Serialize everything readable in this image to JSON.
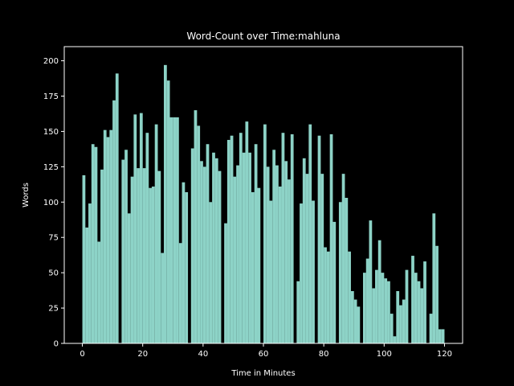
{
  "chart_data": {
    "type": "bar",
    "title": "Word-Count over Time:mahluna",
    "xlabel": "Time in Minutes",
    "ylabel": "Words",
    "xlim": [
      -6,
      126
    ],
    "ylim": [
      0,
      210
    ],
    "xticks": [
      0,
      20,
      40,
      60,
      80,
      100,
      120
    ],
    "yticks": [
      0,
      25,
      50,
      75,
      100,
      125,
      150,
      175,
      200
    ],
    "grid": false,
    "bar_color": "#8dd3c7",
    "background": "#000000",
    "x": [
      0,
      1,
      2,
      3,
      4,
      5,
      6,
      7,
      8,
      9,
      10,
      11,
      12,
      13,
      14,
      15,
      16,
      17,
      18,
      19,
      20,
      21,
      22,
      23,
      24,
      25,
      26,
      27,
      28,
      29,
      30,
      31,
      32,
      33,
      34,
      35,
      36,
      37,
      38,
      39,
      40,
      41,
      42,
      43,
      44,
      45,
      46,
      47,
      48,
      49,
      50,
      51,
      52,
      53,
      54,
      55,
      56,
      57,
      58,
      59,
      60,
      61,
      62,
      63,
      64,
      65,
      66,
      67,
      68,
      69,
      70,
      71,
      72,
      73,
      74,
      75,
      76,
      77,
      78,
      79,
      80,
      81,
      82,
      83,
      84,
      85,
      86,
      87,
      88,
      89,
      90,
      91,
      92,
      93,
      94,
      95,
      96,
      97,
      98,
      99,
      100,
      101,
      102,
      103,
      104,
      105,
      106,
      107,
      108,
      109,
      110,
      111,
      112,
      113,
      114,
      115,
      116,
      117,
      118,
      119
    ],
    "values": [
      119,
      82,
      99,
      141,
      139,
      72,
      123,
      151,
      146,
      151,
      172,
      191,
      0,
      130,
      137,
      92,
      118,
      162,
      124,
      163,
      124,
      149,
      110,
      111,
      155,
      122,
      64,
      197,
      186,
      160,
      160,
      160,
      71,
      114,
      107,
      0,
      138,
      165,
      154,
      129,
      125,
      141,
      100,
      135,
      131,
      122,
      0,
      85,
      144,
      147,
      118,
      126,
      149,
      135,
      157,
      135,
      107,
      141,
      110,
      0,
      155,
      125,
      101,
      137,
      126,
      111,
      149,
      129,
      116,
      148,
      0,
      44,
      99,
      131,
      120,
      155,
      101,
      0,
      147,
      120,
      68,
      65,
      148,
      86,
      0,
      100,
      120,
      103,
      65,
      37,
      31,
      26,
      0,
      50,
      60,
      87,
      39,
      52,
      73,
      50,
      46,
      44,
      21,
      5,
      37,
      27,
      31,
      52,
      0,
      62,
      50,
      44,
      39,
      58,
      0,
      21,
      92,
      69,
      10,
      10
    ]
  }
}
